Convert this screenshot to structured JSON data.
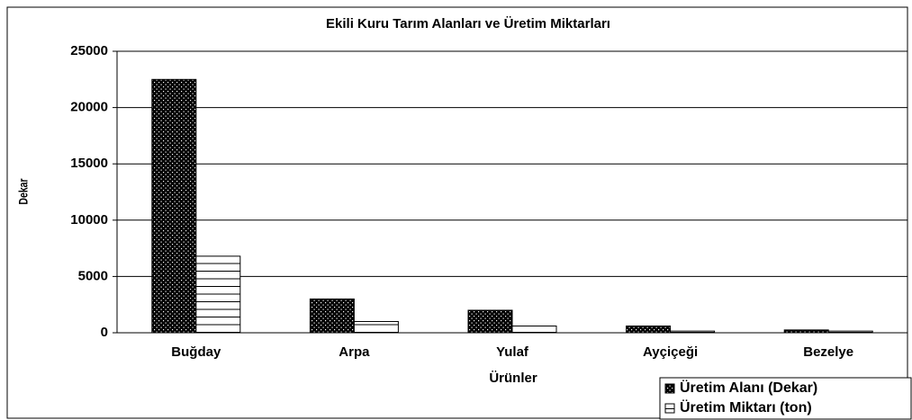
{
  "chart_data": {
    "type": "bar",
    "title": "Ekili Kuru Tarım Alanları ve Üretim Miktarları",
    "x_label": "Ürünler",
    "y_label": "Dekar",
    "categories": [
      "Buğday",
      "Arpa",
      "Yulaf",
      "Ayçiçeği",
      "Bezelye"
    ],
    "series": [
      {
        "name": "Üretim Alanı (Dekar)",
        "color": "#000000",
        "values": [
          22500,
          3000,
          2000,
          600,
          250
        ]
      },
      {
        "name": "Üretim Miktarı (ton)",
        "color": "#ffffff",
        "values": [
          6800,
          1000,
          600,
          150,
          150
        ]
      }
    ],
    "ylim": [
      0,
      25000
    ],
    "yticks": [
      0,
      5000,
      10000,
      15000,
      20000,
      25000
    ],
    "grid": true,
    "legend": "bottom-right"
  }
}
